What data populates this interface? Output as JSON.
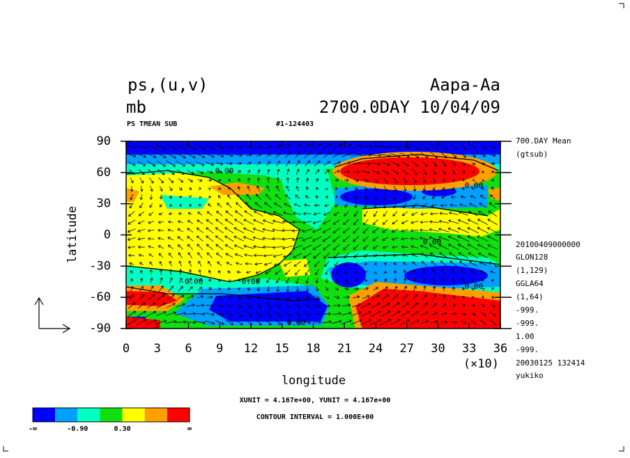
{
  "chart_data": {
    "type": "contour",
    "title": "ps,(u,v)",
    "unit": "mb",
    "experiment": "Aapa-Aa",
    "time": "2700.0DAY 10/04/09",
    "variable": "PS TMEAN SUB",
    "run_id": "#1-124403",
    "xlabel": "longitude",
    "ylabel": "latitude",
    "x_scale": "(×10)",
    "xlim": [
      0,
      36
    ],
    "xticks": [
      0,
      3,
      6,
      9,
      12,
      15,
      18,
      21,
      24,
      27,
      30,
      33,
      36
    ],
    "ylim": [
      -90,
      90
    ],
    "yticks": [
      -90,
      -60,
      -30,
      0,
      30,
      60,
      90
    ],
    "info": [
      "700.DAY Mean",
      "(gtsub)",
      "20100409000000",
      "GLON128",
      "(1,129)",
      "GGLA64",
      "(1,64)",
      "-999.",
      "-999.",
      "1.00",
      "-999.",
      "20030125 132414",
      "yukiko"
    ],
    "units_note": "XUNIT = 4.167e+00, YUNIT = 4.167e+00",
    "contour_interval": "CONTOUR INTERVAL = 1.000E+00",
    "contour_labels": [
      "0.00",
      "0.00",
      "0.00",
      "-0.00",
      "0.00",
      "0.00",
      "0.00"
    ],
    "colorbar": {
      "colors": [
        "#0000ff",
        "#00a0ff",
        "#00ffc0",
        "#10e010",
        "#ffff00",
        "#ffa000",
        "#ff0000"
      ],
      "labels": [
        "-∞",
        "-0.90",
        "0.30",
        "∞"
      ]
    }
  }
}
